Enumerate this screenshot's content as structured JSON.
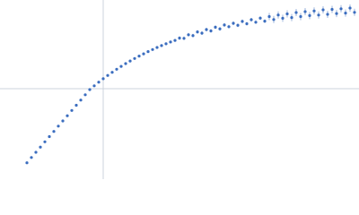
{
  "chart_data": {
    "type": "scatter",
    "color": "#3b6dbf",
    "error_color": "#9db5dc",
    "x": [
      30,
      35,
      40,
      45,
      50,
      55,
      60,
      65,
      70,
      75,
      80,
      85,
      90,
      95,
      100,
      105,
      110,
      115,
      120,
      125,
      130,
      135,
      140,
      145,
      150,
      155,
      160,
      165,
      170,
      175,
      180,
      185,
      190,
      195,
      200,
      205,
      210,
      215,
      220,
      225,
      230,
      235,
      240,
      245,
      250,
      255,
      260,
      265,
      270,
      275,
      280,
      285,
      290,
      295,
      300,
      305,
      310,
      315,
      320,
      325,
      330,
      335,
      340,
      345,
      350,
      355,
      360,
      365,
      370,
      375,
      380,
      385,
      390,
      395
    ],
    "values": [
      18.3,
      24.2,
      30.0,
      35.8,
      41.7,
      47.5,
      53.3,
      59.2,
      65.0,
      70.8,
      76.7,
      82.5,
      88.3,
      94.2,
      100.0,
      104.2,
      108.3,
      112.1,
      115.8,
      119.3,
      122.7,
      125.9,
      129.0,
      131.9,
      134.7,
      137.4,
      139.9,
      142.4,
      144.7,
      147.0,
      149.1,
      151.1,
      153.1,
      154.9,
      157.5,
      157.2,
      161.2,
      160.3,
      164.4,
      163.0,
      167.0,
      165.5,
      169.6,
      167.8,
      172.1,
      170.2,
      174.0,
      171.8,
      176.1,
      173.5,
      178.0,
      175.2,
      179.8,
      176.4,
      181.5,
      178.2,
      183.3,
      179.6,
      184.5,
      180.4,
      186.0,
      181.5,
      187.0,
      182.6,
      187.8,
      183.2,
      189.0,
      184.0,
      189.5,
      184.9,
      190.2,
      185.4,
      191.0,
      186.2
    ],
    "errors": [
      1,
      1,
      1,
      1,
      1,
      1,
      1,
      1,
      1,
      1,
      1,
      1,
      1,
      1,
      1,
      1,
      1,
      1,
      1,
      1,
      1,
      1,
      1,
      1,
      1,
      1,
      1,
      1,
      1,
      1,
      1,
      1,
      1,
      1,
      2,
      2,
      2,
      2,
      2,
      2,
      2,
      2,
      2,
      2,
      2,
      2,
      2,
      2,
      2,
      2,
      2,
      2,
      2,
      2,
      4,
      4,
      4,
      4,
      4,
      4,
      4,
      4,
      4,
      4,
      4,
      4,
      4,
      4,
      4,
      4,
      4,
      4,
      4,
      4
    ],
    "xlim": [
      0,
      400
    ],
    "ylim": [
      0,
      200
    ],
    "vlines": [
      115
    ],
    "hlines": [
      101
    ]
  }
}
